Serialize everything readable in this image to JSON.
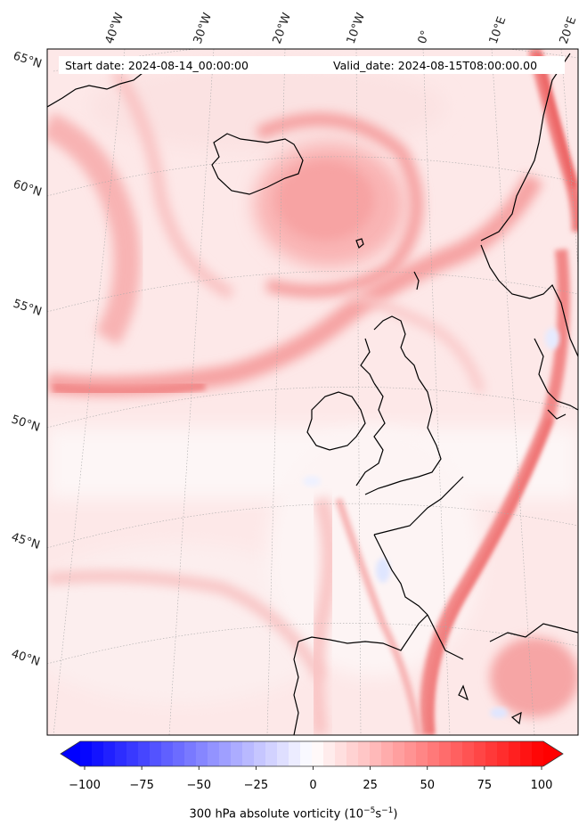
{
  "map": {
    "start_date": "Start date: 2024-08-14_00:00:00",
    "valid_date": "Valid_date: 2024-08-15T08:00:00.00",
    "lon_labels": [
      "40°W",
      "30°W",
      "20°W",
      "10°W",
      "0°",
      "10°E",
      "20°E"
    ],
    "lat_labels": [
      "65°N",
      "60°N",
      "55°N",
      "50°N",
      "45°N",
      "40°N"
    ],
    "field": "300 hPa absolute vorticity",
    "colors": {
      "negative_max": "#0000ff",
      "zero": "#ffffff",
      "positive_max": "#ff0000",
      "coastline": "#000000",
      "gridline": "#aaaaaa"
    }
  },
  "colorbar": {
    "ticks": [
      "−100",
      "−75",
      "−50",
      "−25",
      "0",
      "25",
      "50",
      "75",
      "100"
    ],
    "title_main": "300 hPa absolute vorticity (10",
    "title_exp1": "−5",
    "title_mid": "s",
    "title_exp2": "−1",
    "title_end": ")",
    "range": [
      -100,
      100
    ],
    "extend": "both"
  }
}
